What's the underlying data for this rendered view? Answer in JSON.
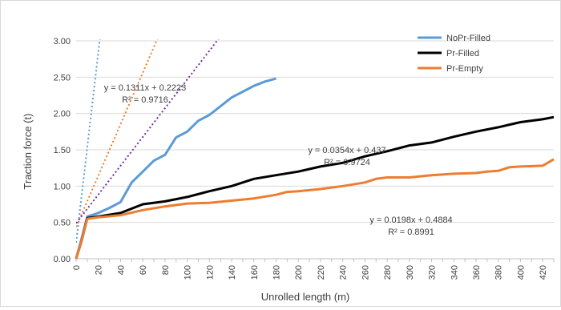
{
  "chart_data": {
    "type": "line",
    "title": "",
    "xlabel": "Unrolled length (m)",
    "ylabel": "Traction force (t)",
    "xlim": [
      0,
      430
    ],
    "ylim": [
      0,
      3
    ],
    "x_ticks": [
      0,
      20,
      40,
      60,
      80,
      100,
      120,
      140,
      160,
      180,
      200,
      220,
      240,
      260,
      280,
      300,
      320,
      340,
      360,
      380,
      400,
      420
    ],
    "x_tick_labels": [
      "0",
      "20",
      "40",
      "60",
      "80",
      "100",
      "120",
      "140",
      "160",
      "180",
      "200",
      "220",
      "240",
      "260",
      "280",
      "300",
      "320",
      "340",
      "360",
      "380",
      "400",
      "420"
    ],
    "y_ticks": [
      0,
      0.5,
      1,
      1.5,
      2,
      2.5,
      3
    ],
    "y_tick_labels": [
      "0.00",
      "0.50",
      "1.00",
      "1.50",
      "2.00",
      "2.50",
      "3.00"
    ],
    "grid": "horizontal",
    "legend_position": "top-right",
    "series": [
      {
        "name": "NoPr-Filled",
        "color": "#5b9bd5",
        "x": [
          0,
          5,
          10,
          20,
          30,
          40,
          50,
          60,
          70,
          80,
          90,
          100,
          110,
          120,
          130,
          140,
          150,
          160,
          170,
          180
        ],
        "y": [
          0.0,
          0.28,
          0.58,
          0.63,
          0.7,
          0.78,
          1.05,
          1.2,
          1.35,
          1.43,
          1.67,
          1.75,
          1.9,
          1.98,
          2.1,
          2.22,
          2.3,
          2.38,
          2.44,
          2.48
        ]
      },
      {
        "name": "Pr-Filled",
        "color": "#000000",
        "x": [
          0,
          5,
          10,
          20,
          40,
          60,
          80,
          100,
          120,
          140,
          160,
          180,
          200,
          220,
          240,
          260,
          280,
          300,
          320,
          340,
          360,
          380,
          400,
          420,
          430
        ],
        "y": [
          0.0,
          0.25,
          0.56,
          0.58,
          0.63,
          0.75,
          0.79,
          0.85,
          0.93,
          1.0,
          1.1,
          1.15,
          1.2,
          1.27,
          1.32,
          1.41,
          1.48,
          1.56,
          1.6,
          1.68,
          1.75,
          1.81,
          1.88,
          1.92,
          1.95
        ]
      },
      {
        "name": "Pr-Empty",
        "color": "#ed7d31",
        "x": [
          0,
          5,
          10,
          20,
          40,
          60,
          80,
          100,
          120,
          140,
          160,
          180,
          190,
          200,
          220,
          240,
          260,
          270,
          280,
          300,
          320,
          340,
          360,
          370,
          380,
          390,
          400,
          420,
          430
        ],
        "y": [
          0.0,
          0.25,
          0.55,
          0.57,
          0.6,
          0.67,
          0.72,
          0.76,
          0.77,
          0.8,
          0.83,
          0.88,
          0.92,
          0.93,
          0.96,
          1.0,
          1.05,
          1.1,
          1.12,
          1.12,
          1.15,
          1.17,
          1.18,
          1.2,
          1.21,
          1.26,
          1.27,
          1.28,
          1.37
        ]
      }
    ],
    "trendlines": [
      {
        "series": "NoPr-Filled",
        "slope": 0.1311,
        "intercept": 0.2223,
        "x_range": [
          0,
          210
        ],
        "color": "#5b9bd5",
        "equation": "y = 0.1311x + 0.2223",
        "r2": "R² = 0.9716"
      },
      {
        "series": "Pr-Filled",
        "slope": 0.0354,
        "intercept": 0.437,
        "x_range": [
          0,
          430
        ],
        "color": "#ed7d31",
        "equation": "y = 0.0354x + 0.437",
        "r2": "R² = 0.9724"
      },
      {
        "series": "Pr-Empty",
        "slope": 0.0198,
        "intercept": 0.4884,
        "x_range": [
          0,
          430
        ],
        "color": "#7030a0",
        "equation": "y = 0.0198x + 0.4884",
        "r2": "R² = 0.8991"
      }
    ]
  }
}
